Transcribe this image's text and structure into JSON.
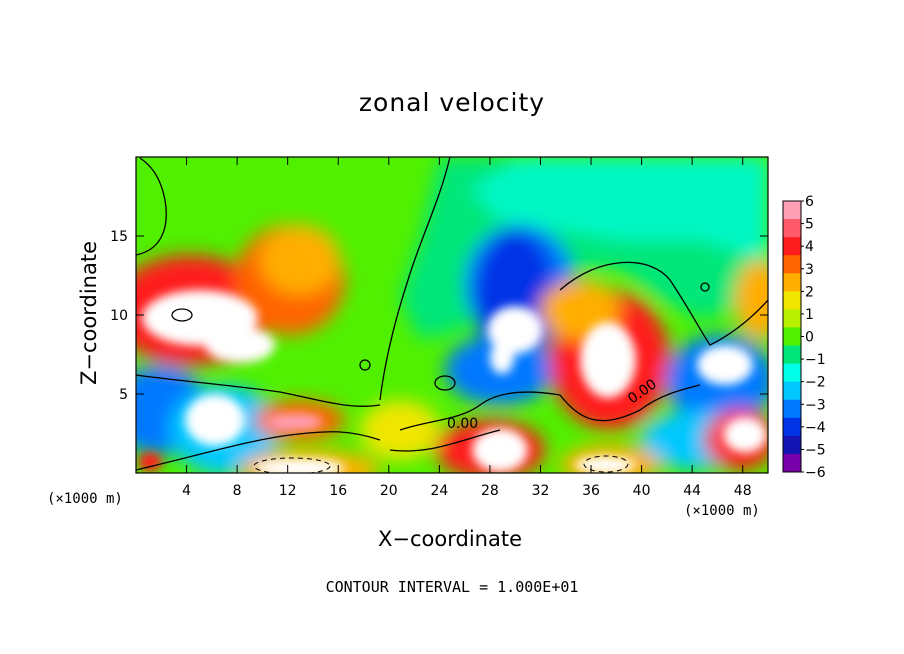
{
  "chart_data": {
    "type": "heatmap",
    "title": "zonal velocity",
    "xlabel": "X−coordinate",
    "ylabel": "Z−coordinate",
    "x_unit": "(×1000 m)",
    "x_ticks": [
      "4",
      "8",
      "12",
      "16",
      "20",
      "24",
      "28",
      "32",
      "36",
      "40",
      "44",
      "48"
    ],
    "y_ticks": [
      "5",
      "10",
      "15"
    ],
    "xlim": [
      0,
      50
    ],
    "ylim": [
      0,
      20
    ],
    "colorbar": {
      "labels": [
        "6",
        "5",
        "4",
        "3",
        "2",
        "1",
        "0",
        "−1",
        "−2",
        "−3",
        "−4",
        "−5",
        "−6"
      ],
      "range": [
        -6,
        6
      ]
    },
    "contour_label": "0.00",
    "contour_interval_text": "CONTOUR INTERVAL = 1.000E+01"
  },
  "colors": {
    "colorbar": [
      "#ff9fb4",
      "#ff5a6a",
      "#ff1e1e",
      "#ff6400",
      "#ffae00",
      "#f0e600",
      "#b9f000",
      "#50f000",
      "#00e678",
      "#00ffe6",
      "#00c8ff",
      "#0078ff",
      "#0032e6",
      "#1414b4",
      "#7800aa"
    ]
  }
}
